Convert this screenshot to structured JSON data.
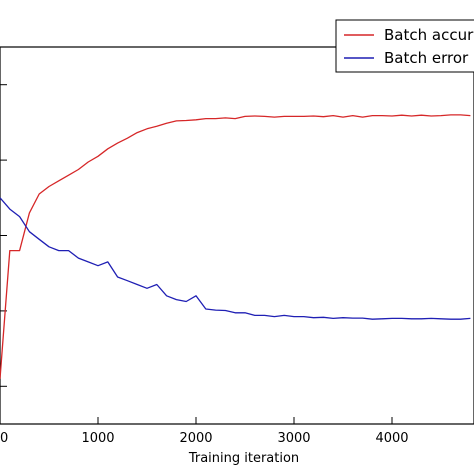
{
  "chart_data": {
    "type": "line",
    "title": "",
    "xlabel": "Training iteration",
    "ylabel": "",
    "xlim": [
      0,
      4800
    ],
    "ylim": [
      0,
      1
    ],
    "x_ticks": [
      0,
      1000,
      2000,
      3000,
      4000
    ],
    "x_tick_labels": [
      "0",
      "1000",
      "2000",
      "3000",
      "4000"
    ],
    "y_ticks": [
      0.1,
      0.3,
      0.5,
      0.7,
      0.9
    ],
    "grid": false,
    "legend": {
      "placement": "top-right"
    },
    "series": [
      {
        "name": "Batch accuracy",
        "color": "#d62728",
        "x": [
          0,
          100,
          200,
          300,
          400,
          500,
          600,
          700,
          800,
          900,
          1000,
          1100,
          1200,
          1300,
          1400,
          1500,
          1600,
          1700,
          1800,
          1900,
          2000,
          2100,
          2200,
          2300,
          2400,
          2500,
          2600,
          2700,
          2800,
          2900,
          3000,
          3100,
          3200,
          3300,
          3400,
          3500,
          3600,
          3700,
          3800,
          3900,
          4000,
          4100,
          4200,
          4300,
          4400,
          4500,
          4600,
          4700,
          4800
        ],
        "y": [
          0.12,
          0.46,
          0.46,
          0.56,
          0.61,
          0.63,
          0.645,
          0.66,
          0.675,
          0.695,
          0.71,
          0.73,
          0.745,
          0.758,
          0.773,
          0.783,
          0.79,
          0.798,
          0.804,
          0.805,
          0.807,
          0.81,
          0.81,
          0.812,
          0.81,
          0.816,
          0.817,
          0.816,
          0.814,
          0.816,
          0.816,
          0.816,
          0.817,
          0.815,
          0.818,
          0.814,
          0.818,
          0.814,
          0.818,
          0.818,
          0.817,
          0.819,
          0.817,
          0.819,
          0.817,
          0.818,
          0.82,
          0.82,
          0.818
        ]
      },
      {
        "name": "Batch error",
        "color": "#1f1fb4",
        "x": [
          0,
          100,
          200,
          300,
          400,
          500,
          600,
          700,
          800,
          900,
          1000,
          1100,
          1200,
          1300,
          1400,
          1500,
          1600,
          1700,
          1800,
          1900,
          2000,
          2100,
          2200,
          2300,
          2400,
          2500,
          2600,
          2700,
          2800,
          2900,
          3000,
          3100,
          3200,
          3300,
          3400,
          3500,
          3600,
          3700,
          3800,
          3900,
          4000,
          4100,
          4200,
          4300,
          4400,
          4500,
          4600,
          4700,
          4800
        ],
        "y": [
          0.6,
          0.57,
          0.55,
          0.51,
          0.49,
          0.47,
          0.46,
          0.46,
          0.44,
          0.43,
          0.42,
          0.43,
          0.39,
          0.38,
          0.37,
          0.36,
          0.37,
          0.34,
          0.33,
          0.325,
          0.34,
          0.305,
          0.302,
          0.301,
          0.295,
          0.295,
          0.288,
          0.288,
          0.285,
          0.288,
          0.285,
          0.285,
          0.282,
          0.283,
          0.28,
          0.282,
          0.281,
          0.281,
          0.278,
          0.279,
          0.28,
          0.28,
          0.279,
          0.279,
          0.28,
          0.279,
          0.278,
          0.278,
          0.28
        ]
      }
    ]
  }
}
